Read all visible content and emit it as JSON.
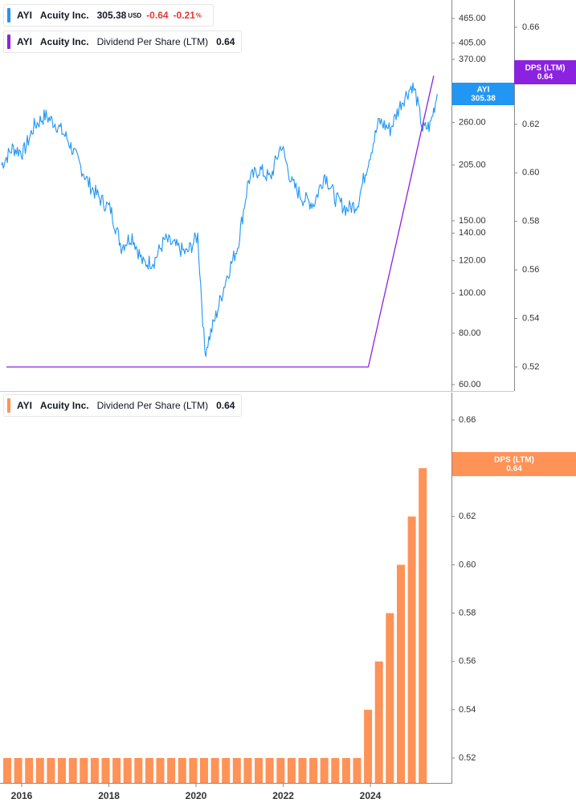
{
  "legend_top": {
    "ticker": "AYI",
    "company": "Acuity Inc.",
    "price": "305.38",
    "currency": "USD",
    "change": "-0.64",
    "change_pct": "-0.21",
    "pct_sign": "%"
  },
  "legend_top_indicator": {
    "ticker": "AYI",
    "company": "Acuity Inc.",
    "indicator": "Dividend Per Share (LTM)",
    "value": "0.64"
  },
  "legend_bottom": {
    "ticker": "AYI",
    "company": "Acuity Inc.",
    "indicator": "Dividend Per Share (LTM)",
    "value": "0.64"
  },
  "badges": {
    "price": {
      "line1": "AYI",
      "line2": "305.38"
    },
    "dps_top": {
      "line1": "DPS (LTM)",
      "line2": "0.64"
    },
    "dps_bottom": {
      "line1": "DPS (LTM)",
      "line2": "0.64"
    }
  },
  "colors": {
    "price": "#2196f3",
    "dps_line": "#8b22e0",
    "bars": "#ff9257",
    "grid_axis": "#888888"
  },
  "chart_data": [
    {
      "type": "line",
      "scale": "log",
      "series": [
        {
          "name": "AYI",
          "x": [
            "2015-07",
            "2015-10",
            "2016-01",
            "2016-04",
            "2016-07",
            "2016-10",
            "2017-01",
            "2017-04",
            "2017-07",
            "2017-10",
            "2018-01",
            "2018-04",
            "2018-07",
            "2018-10",
            "2019-01",
            "2019-04",
            "2019-07",
            "2019-10",
            "2020-01",
            "2020-03",
            "2020-06",
            "2020-09",
            "2020-12",
            "2021-03",
            "2021-06",
            "2021-09",
            "2021-12",
            "2022-03",
            "2022-06",
            "2022-09",
            "2022-12",
            "2023-03",
            "2023-06",
            "2023-09",
            "2023-12",
            "2024-03",
            "2024-06",
            "2024-09",
            "2024-12",
            "2025-01",
            "2025-03",
            "2025-05",
            "2025-07"
          ],
          "values": [
            205,
            225,
            220,
            255,
            270,
            258,
            238,
            210,
            185,
            170,
            160,
            130,
            138,
            118,
            120,
            135,
            130,
            125,
            138,
            72,
            88,
            110,
            130,
            188,
            200,
            190,
            230,
            185,
            170,
            165,
            195,
            170,
            160,
            165,
            210,
            262,
            250,
            290,
            320,
            305,
            250,
            255,
            305
          ]
        },
        {
          "name": "Dividend Per Share (LTM)",
          "x": [
            "2015-07",
            "2023-12",
            "2024-03",
            "2024-06",
            "2024-09",
            "2024-12",
            "2025-03",
            "2025-06"
          ],
          "values": [
            0.52,
            0.52,
            0.54,
            0.56,
            0.58,
            0.6,
            0.62,
            0.64
          ]
        }
      ],
      "yticks_left": [
        "465.00",
        "405.00",
        "370.00",
        "260.00",
        "205.00",
        "150.00",
        "140.00",
        "120.00",
        "100.00",
        "80.00",
        "60.00"
      ],
      "yticks_right": [
        "0.66",
        "0.62",
        "0.60",
        "0.58",
        "0.56",
        "0.54",
        "0.52"
      ],
      "grid": false
    },
    {
      "type": "bar",
      "series": [
        {
          "name": "Dividend Per Share (LTM)"
        }
      ],
      "values": [
        0.52,
        0.52,
        0.52,
        0.52,
        0.52,
        0.52,
        0.52,
        0.52,
        0.52,
        0.52,
        0.52,
        0.52,
        0.52,
        0.52,
        0.52,
        0.52,
        0.52,
        0.52,
        0.52,
        0.52,
        0.52,
        0.52,
        0.52,
        0.52,
        0.52,
        0.52,
        0.52,
        0.52,
        0.52,
        0.52,
        0.52,
        0.52,
        0.52,
        0.54,
        0.56,
        0.58,
        0.6,
        0.62,
        0.64
      ],
      "yticks": [
        "0.66",
        "0.64",
        "0.62",
        "0.60",
        "0.58",
        "0.56",
        "0.54",
        "0.52"
      ],
      "xticks": [
        "2016",
        "2018",
        "2020",
        "2022",
        "2024"
      ],
      "grid": false
    }
  ]
}
